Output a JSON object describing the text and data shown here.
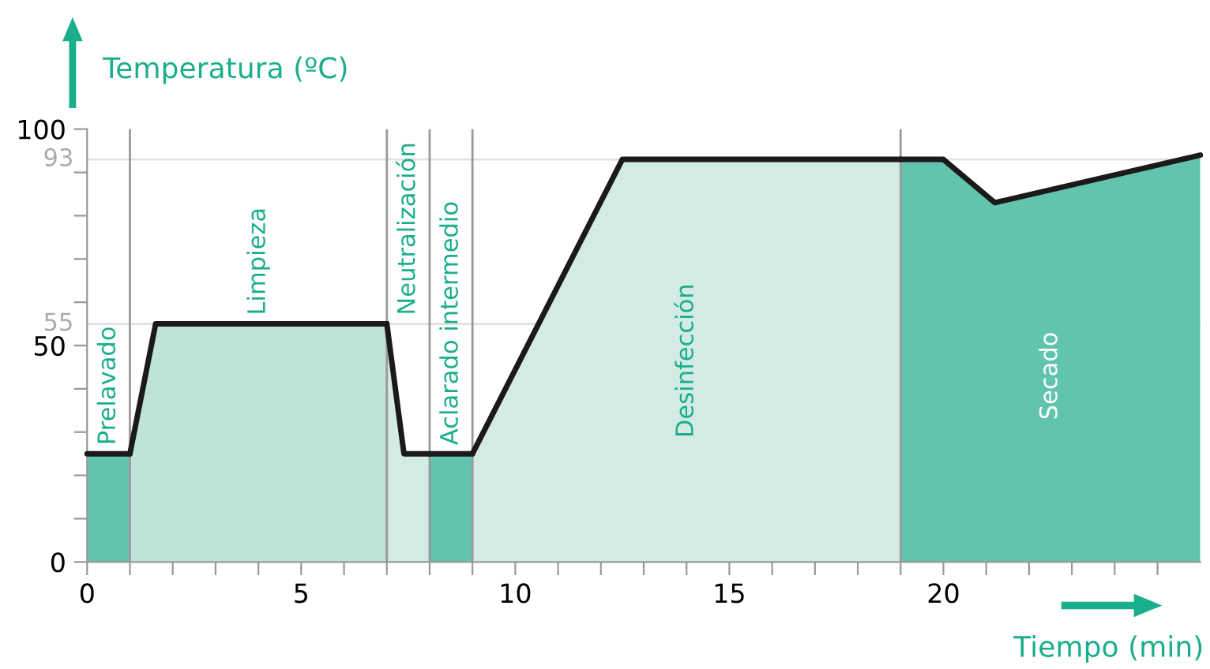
{
  "chart_data": {
    "type": "area",
    "xlabel": "Tiempo (min)",
    "ylabel": "Temperatura (ºC)",
    "series": [
      {
        "name": "Prelavado",
        "color": "#62c4ad",
        "x": [
          0,
          1
        ],
        "values": [
          25,
          25
        ]
      },
      {
        "name": "Limpieza",
        "color": "#bfe2d9",
        "x": [
          1,
          1.6,
          7
        ],
        "values": [
          25,
          55,
          55
        ]
      },
      {
        "name": "Neutralización",
        "color": "#d3ebe4",
        "x": [
          7,
          7.4,
          8
        ],
        "values": [
          55,
          25,
          25
        ]
      },
      {
        "name": "Aclarado intermedio",
        "color": "#62c4ad",
        "x": [
          8,
          9
        ],
        "values": [
          25,
          25
        ]
      },
      {
        "name": "Desinfección",
        "color": "#d3ebe4",
        "x": [
          9,
          12.5,
          19
        ],
        "values": [
          25,
          93,
          93
        ]
      },
      {
        "name": "Secado",
        "color": "#62c4ad",
        "x": [
          19,
          20,
          21.2,
          26
        ],
        "values": [
          93,
          93,
          83,
          94
        ]
      }
    ],
    "xlim": [
      0,
      26
    ],
    "ylim": [
      0,
      100
    ],
    "xticks": [
      0,
      {
        "value": 1,
        "label": null
      },
      {
        "value": 2,
        "label": null
      },
      {
        "value": 3,
        "label": null
      },
      {
        "value": 4,
        "label": null
      },
      5,
      {
        "value": 6,
        "label": null
      },
      {
        "value": 7,
        "label": null
      },
      {
        "value": 8,
        "label": null
      },
      {
        "value": 9,
        "label": null
      },
      10,
      {
        "value": 11,
        "label": null
      },
      {
        "value": 12,
        "label": null
      },
      {
        "value": 13,
        "label": null
      },
      {
        "value": 14,
        "label": null
      },
      15,
      {
        "value": 16,
        "label": null
      },
      {
        "value": 17,
        "label": null
      },
      {
        "value": 18,
        "label": null
      },
      {
        "value": 19,
        "label": null
      },
      20,
      {
        "value": 21,
        "label": null
      },
      {
        "value": 22,
        "label": null
      },
      {
        "value": 23,
        "label": null
      },
      {
        "value": 24,
        "label": null
      },
      {
        "value": 25,
        "label": null
      }
    ],
    "yticks": [
      0,
      {
        "value": 10,
        "label": null
      },
      {
        "value": 20,
        "label": null
      },
      {
        "value": 30,
        "label": null
      },
      {
        "value": 40,
        "label": null
      },
      50,
      {
        "value": 60,
        "label": null
      },
      {
        "value": 70,
        "label": null
      },
      {
        "value": 80,
        "label": null
      },
      {
        "value": 90,
        "label": null
      },
      100
    ],
    "ref_lines": [
      {
        "axis": "y",
        "value": 93,
        "label": "93",
        "color": "#e0e0e0"
      },
      {
        "axis": "y",
        "value": 55,
        "label": "55",
        "color": "#e0e0e0"
      },
      {
        "axis": "x",
        "value": 1,
        "color": "#999999"
      },
      {
        "axis": "x",
        "value": 7,
        "color": "#999999"
      },
      {
        "axis": "x",
        "value": 8,
        "color": "#999999"
      },
      {
        "axis": "x",
        "value": 9,
        "color": "#999999"
      },
      {
        "axis": "x",
        "value": 19,
        "color": "#999999"
      }
    ],
    "grid": false,
    "legend": false
  }
}
